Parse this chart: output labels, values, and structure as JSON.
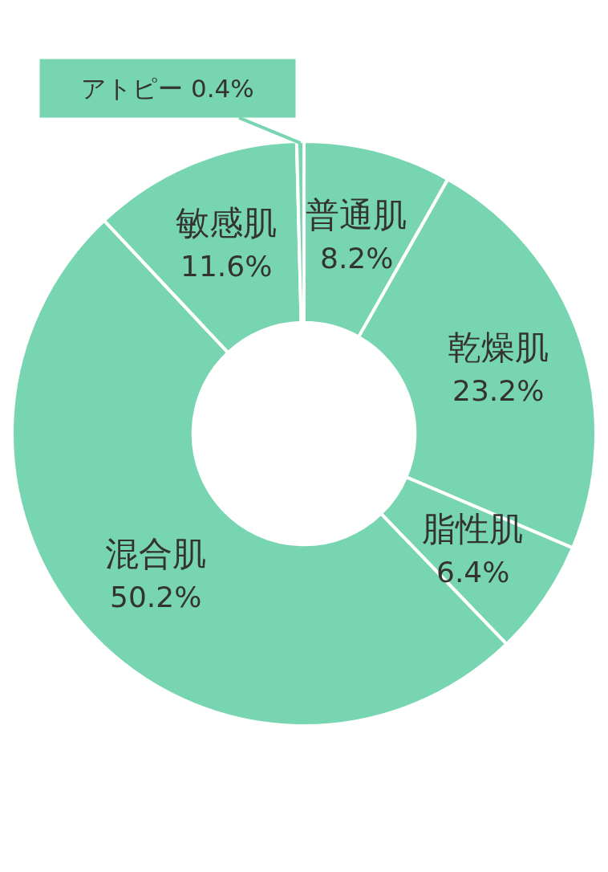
{
  "chart_data": {
    "type": "donut",
    "categories": [
      "普通肌",
      "乾燥肌",
      "脂性肌",
      "混合肌",
      "敏感肌",
      "アトピー"
    ],
    "values": [
      8.2,
      23.2,
      6.4,
      50.2,
      11.6,
      0.4
    ],
    "value_labels": [
      "8.2%",
      "23.2%",
      "6.4%",
      "50.2%",
      "11.6%",
      "0.4%"
    ],
    "colors": [
      "#78d5b1",
      "#78d5b1",
      "#78d5b1",
      "#78d5b1",
      "#78d5b1",
      "#78d5b1"
    ],
    "legend": false
  }
}
